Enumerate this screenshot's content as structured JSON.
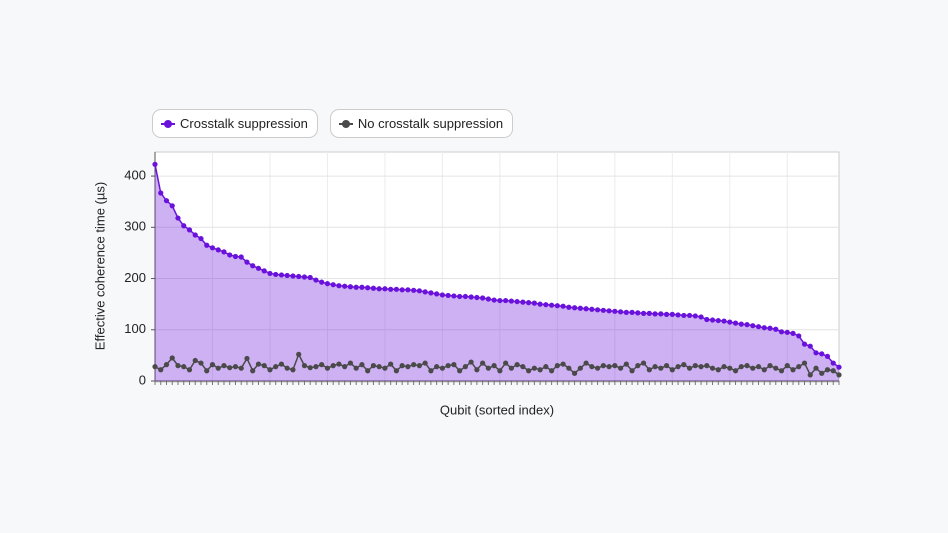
{
  "chart_data": {
    "type": "line",
    "xlabel": "Qubit (sorted index)",
    "ylabel": "Effective coherence time (µs)",
    "categories": [
      null,
      null,
      null,
      null,
      null,
      null,
      null,
      null,
      null,
      null,
      null,
      null,
      null,
      null,
      null,
      null,
      null,
      null,
      null,
      null,
      null,
      null,
      null,
      null,
      null,
      null,
      null,
      null,
      null,
      null,
      null,
      null,
      null,
      null,
      null,
      null,
      null,
      null,
      null,
      null,
      null,
      null,
      null,
      null,
      null,
      null,
      null,
      null,
      null,
      null,
      null,
      null,
      null,
      null,
      null,
      null,
      null,
      null,
      null,
      null,
      null,
      null,
      null,
      null,
      null,
      null,
      null,
      null,
      null,
      null,
      null,
      null,
      null,
      null,
      null,
      null,
      null,
      null,
      null,
      null,
      null,
      null,
      null,
      null,
      null,
      null,
      null,
      null,
      null,
      null,
      null,
      null,
      null,
      null,
      null,
      null,
      null,
      null,
      null,
      null,
      null,
      null,
      null,
      null,
      null,
      null,
      null,
      null,
      null,
      null,
      null,
      null,
      null,
      null,
      null,
      null,
      null,
      null,
      null,
      null
    ],
    "series": [
      {
        "name": "Crosstalk suppression",
        "color": "#6a12dc",
        "fill": true,
        "values": [
          423,
          367,
          352,
          342,
          318,
          303,
          295,
          285,
          278,
          265,
          260,
          256,
          252,
          246,
          243,
          242,
          232,
          225,
          220,
          215,
          210,
          208,
          207,
          206,
          205,
          204,
          203,
          202,
          197,
          193,
          190,
          188,
          186,
          185,
          184,
          183,
          183,
          182,
          181,
          180,
          180,
          179,
          179,
          178,
          178,
          177,
          176,
          174,
          172,
          170,
          168,
          167,
          166,
          165,
          165,
          164,
          163,
          162,
          160,
          158,
          157,
          157,
          156,
          155,
          154,
          153,
          152,
          150,
          149,
          148,
          147,
          146,
          144,
          143,
          142,
          141,
          140,
          139,
          138,
          137,
          136,
          135,
          134,
          134,
          133,
          132,
          132,
          131,
          131,
          130,
          130,
          129,
          128,
          128,
          127,
          125,
          120,
          119,
          118,
          117,
          115,
          113,
          111,
          110,
          108,
          106,
          104,
          103,
          101,
          96,
          95,
          93,
          88,
          72,
          68,
          55,
          53,
          48,
          35,
          27
        ]
      },
      {
        "name": "No crosstalk suppression",
        "color": "#4a4a4a",
        "fill": false,
        "values": [
          28,
          22,
          32,
          45,
          30,
          28,
          22,
          40,
          35,
          20,
          32,
          25,
          30,
          26,
          28,
          25,
          44,
          20,
          33,
          30,
          22,
          28,
          33,
          25,
          22,
          52,
          30,
          26,
          28,
          32,
          25,
          30,
          33,
          28,
          35,
          25,
          32,
          20,
          30,
          28,
          25,
          33,
          20,
          30,
          28,
          32,
          30,
          35,
          20,
          28,
          25,
          30,
          32,
          20,
          28,
          37,
          22,
          35,
          25,
          30,
          20,
          35,
          25,
          32,
          28,
          20,
          25,
          22,
          28,
          20,
          30,
          33,
          25,
          15,
          25,
          35,
          28,
          25,
          30,
          28,
          30,
          25,
          33,
          20,
          30,
          35,
          22,
          28,
          25,
          30,
          22,
          28,
          32,
          25,
          30,
          28,
          30,
          25,
          22,
          28,
          25,
          20,
          28,
          30,
          25,
          28,
          22,
          30,
          25,
          20,
          30,
          22,
          28,
          35,
          12,
          25,
          15,
          22,
          20,
          12
        ]
      }
    ],
    "ylim": [
      0,
      447
    ],
    "yticks": [
      0,
      100,
      200,
      300,
      400
    ],
    "grid": true,
    "legend": "top-left"
  }
}
